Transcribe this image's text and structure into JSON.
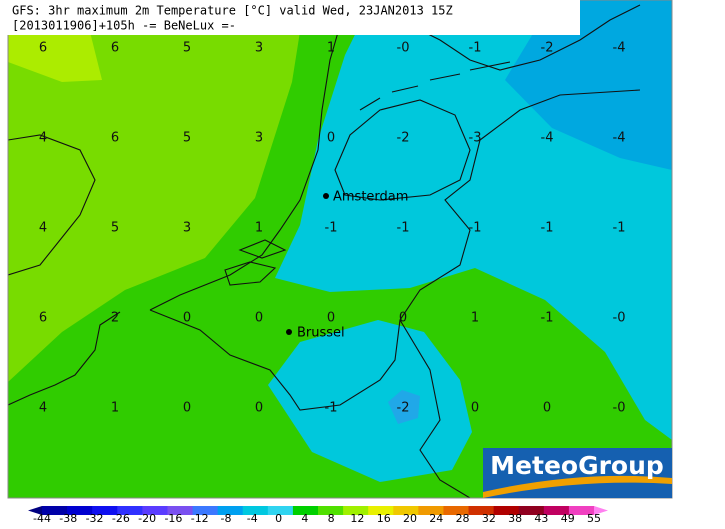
{
  "header": {
    "title": "GFS: 3hr maximum 2m Temperature [°C] valid Wed, 23JAN2013 15Z",
    "subtitle": "[2013011906]+105h -= BeNeLux =-"
  },
  "grid_labels": [
    [
      "6",
      "6",
      "5",
      "3",
      "1",
      "-0",
      "-1",
      "-2",
      "-4"
    ],
    [
      "4",
      "6",
      "5",
      "3",
      "0",
      "-2",
      "-3",
      "-4",
      "-4"
    ],
    [
      "4",
      "5",
      "3",
      "1",
      "-1",
      "-1",
      "-1",
      "-1",
      "-1"
    ],
    [
      "6",
      "2",
      "0",
      "0",
      "0",
      "0",
      "1",
      "-1",
      "-0"
    ],
    [
      "4",
      "1",
      "0",
      "0",
      "-1",
      "-2",
      "0",
      "0",
      "-0"
    ]
  ],
  "cities": [
    {
      "name": "Amsterdam"
    },
    {
      "name": "Brussel"
    }
  ],
  "logo": "MeteoGroup",
  "colorbar": {
    "labels": [
      "-44",
      "-38",
      "-32",
      "-26",
      "-20",
      "-16",
      "-12",
      "-8",
      "-4",
      "0",
      "4",
      "8",
      "12",
      "16",
      "20",
      "24",
      "28",
      "32",
      "38",
      "43",
      "49",
      "55"
    ],
    "colors": [
      "#000080",
      "#0000a8",
      "#0000d0",
      "#1010f0",
      "#3030ff",
      "#5a3cff",
      "#7a50f0",
      "#3c78ff",
      "#00a0f0",
      "#00c8e0",
      "#30d4f0",
      "#00d000",
      "#50e000",
      "#a0f000",
      "#e8f000",
      "#f0c800",
      "#f09a00",
      "#e86800",
      "#d03000",
      "#b00000",
      "#900020",
      "#c00060",
      "#f040c0",
      "#ff80f0"
    ]
  }
}
